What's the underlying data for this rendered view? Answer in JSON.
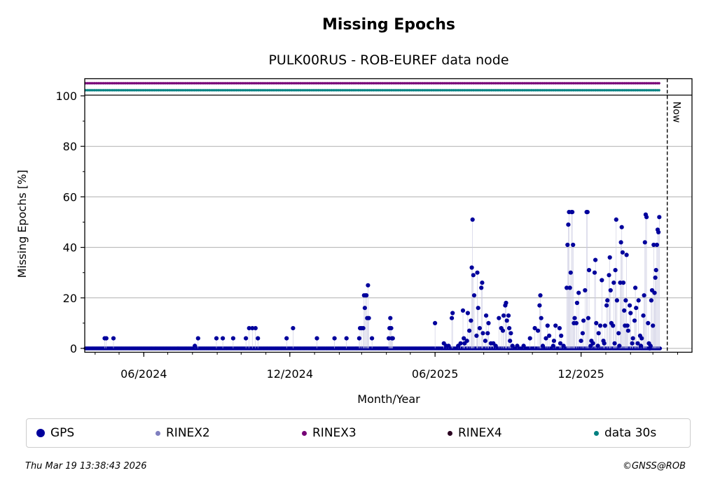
{
  "chart_data": {
    "type": "scatter",
    "title": "Missing Epochs",
    "subtitle": "PULK00RUS - ROB-EUREF data node",
    "xlabel": "Month/Year",
    "ylabel": "Missing Epochs [%]",
    "xlim": [
      "2024-03-19",
      "2026-04-19"
    ],
    "ylim": [
      -1,
      100
    ],
    "yticks": [
      0,
      20,
      40,
      60,
      80,
      100
    ],
    "xticks": [
      {
        "date": "2024-06-01",
        "label": "06/2024"
      },
      {
        "date": "2024-12-01",
        "label": "12/2024"
      },
      {
        "date": "2025-06-01",
        "label": "06/2025"
      },
      {
        "date": "2025-12-01",
        "label": "12/2025"
      }
    ],
    "grid": true,
    "now_date": "2026-03-19",
    "now_label": "Now",
    "series_color": "#00008b",
    "series": [
      {
        "name": "GPS",
        "color": "#00009c",
        "points": [
          [
            "2024-04-13",
            4
          ],
          [
            "2024-04-15",
            4
          ],
          [
            "2024-04-24",
            4
          ],
          [
            "2024-08-04",
            1
          ],
          [
            "2024-08-08",
            4
          ],
          [
            "2024-08-31",
            4
          ],
          [
            "2024-09-08",
            4
          ],
          [
            "2024-09-21",
            4
          ],
          [
            "2024-10-07",
            4
          ],
          [
            "2024-10-11",
            8
          ],
          [
            "2024-10-15",
            8
          ],
          [
            "2024-10-19",
            8
          ],
          [
            "2024-10-22",
            4
          ],
          [
            "2024-11-27",
            4
          ],
          [
            "2024-12-05",
            8
          ],
          [
            "2025-01-04",
            4
          ],
          [
            "2025-01-26",
            4
          ],
          [
            "2025-02-10",
            4
          ],
          [
            "2025-02-26",
            4
          ],
          [
            "2025-02-27",
            8
          ],
          [
            "2025-03-01",
            8
          ],
          [
            "2025-03-03",
            8
          ],
          [
            "2025-03-04",
            21
          ],
          [
            "2025-03-05",
            16
          ],
          [
            "2025-03-06",
            21
          ],
          [
            "2025-03-07",
            21
          ],
          [
            "2025-03-08",
            12
          ],
          [
            "2025-03-09",
            25
          ],
          [
            "2025-03-10",
            12
          ],
          [
            "2025-03-14",
            4
          ],
          [
            "2025-04-04",
            4
          ],
          [
            "2025-04-05",
            8
          ],
          [
            "2025-04-06",
            12
          ],
          [
            "2025-04-07",
            8
          ],
          [
            "2025-04-08",
            4
          ],
          [
            "2025-04-09",
            4
          ],
          [
            "2025-06-01",
            10
          ],
          [
            "2025-06-12",
            2
          ],
          [
            "2025-06-15",
            1
          ],
          [
            "2025-06-18",
            1
          ],
          [
            "2025-06-22",
            12
          ],
          [
            "2025-06-23",
            14
          ],
          [
            "2025-06-30",
            1
          ],
          [
            "2025-07-03",
            2
          ],
          [
            "2025-07-06",
            15
          ],
          [
            "2025-07-07",
            4
          ],
          [
            "2025-07-08",
            2
          ],
          [
            "2025-07-11",
            3
          ],
          [
            "2025-07-12",
            14
          ],
          [
            "2025-07-14",
            7
          ],
          [
            "2025-07-16",
            11
          ],
          [
            "2025-07-17",
            32
          ],
          [
            "2025-07-18",
            51
          ],
          [
            "2025-07-19",
            29
          ],
          [
            "2025-07-20",
            21
          ],
          [
            "2025-07-23",
            5
          ],
          [
            "2025-07-24",
            30
          ],
          [
            "2025-07-25",
            16
          ],
          [
            "2025-07-27",
            8
          ],
          [
            "2025-07-29",
            24
          ],
          [
            "2025-07-30",
            26
          ],
          [
            "2025-07-31",
            6
          ],
          [
            "2025-08-03",
            3
          ],
          [
            "2025-08-04",
            13
          ],
          [
            "2025-08-06",
            6
          ],
          [
            "2025-08-07",
            10
          ],
          [
            "2025-08-10",
            2
          ],
          [
            "2025-08-13",
            2
          ],
          [
            "2025-08-16",
            1
          ],
          [
            "2025-08-20",
            12
          ],
          [
            "2025-08-23",
            8
          ],
          [
            "2025-08-25",
            7
          ],
          [
            "2025-08-26",
            13
          ],
          [
            "2025-08-28",
            17
          ],
          [
            "2025-08-29",
            18
          ],
          [
            "2025-08-30",
            11
          ],
          [
            "2025-09-01",
            13
          ],
          [
            "2025-09-02",
            8
          ],
          [
            "2025-09-03",
            3
          ],
          [
            "2025-09-04",
            6
          ],
          [
            "2025-09-06",
            1
          ],
          [
            "2025-09-12",
            1
          ],
          [
            "2025-09-20",
            1
          ],
          [
            "2025-09-28",
            4
          ],
          [
            "2025-10-04",
            8
          ],
          [
            "2025-10-08",
            7
          ],
          [
            "2025-10-10",
            17
          ],
          [
            "2025-10-11",
            21
          ],
          [
            "2025-10-12",
            12
          ],
          [
            "2025-10-14",
            1
          ],
          [
            "2025-10-18",
            4
          ],
          [
            "2025-10-20",
            9
          ],
          [
            "2025-10-22",
            5
          ],
          [
            "2025-10-27",
            1
          ],
          [
            "2025-10-28",
            3
          ],
          [
            "2025-10-30",
            9
          ],
          [
            "2025-11-04",
            8
          ],
          [
            "2025-11-05",
            2
          ],
          [
            "2025-11-06",
            5
          ],
          [
            "2025-11-09",
            1
          ],
          [
            "2025-11-13",
            24
          ],
          [
            "2025-11-14",
            41
          ],
          [
            "2025-11-15",
            49
          ],
          [
            "2025-11-16",
            54
          ],
          [
            "2025-11-17",
            24
          ],
          [
            "2025-11-18",
            30
          ],
          [
            "2025-11-19",
            54
          ],
          [
            "2025-11-20",
            54
          ],
          [
            "2025-11-21",
            41
          ],
          [
            "2025-11-22",
            10
          ],
          [
            "2025-11-23",
            12
          ],
          [
            "2025-11-25",
            10
          ],
          [
            "2025-11-26",
            18
          ],
          [
            "2025-11-28",
            22
          ],
          [
            "2025-12-01",
            3
          ],
          [
            "2025-12-03",
            6
          ],
          [
            "2025-12-04",
            11
          ],
          [
            "2025-12-06",
            23
          ],
          [
            "2025-12-08",
            54
          ],
          [
            "2025-12-09",
            54
          ],
          [
            "2025-12-10",
            12
          ],
          [
            "2025-12-11",
            31
          ],
          [
            "2025-12-13",
            1
          ],
          [
            "2025-12-14",
            3
          ],
          [
            "2025-12-16",
            2
          ],
          [
            "2025-12-18",
            30
          ],
          [
            "2025-12-19",
            35
          ],
          [
            "2025-12-20",
            10
          ],
          [
            "2025-12-22",
            1
          ],
          [
            "2025-12-23",
            6
          ],
          [
            "2025-12-25",
            9
          ],
          [
            "2025-12-27",
            27
          ],
          [
            "2025-12-29",
            3
          ],
          [
            "2025-12-30",
            2
          ],
          [
            "2025-12-31",
            9
          ],
          [
            "2026-01-02",
            17
          ],
          [
            "2026-01-03",
            19
          ],
          [
            "2026-01-05",
            29
          ],
          [
            "2026-01-06",
            36
          ],
          [
            "2026-01-07",
            23
          ],
          [
            "2026-01-08",
            10
          ],
          [
            "2026-01-10",
            9
          ],
          [
            "2026-01-11",
            26
          ],
          [
            "2026-01-12",
            2
          ],
          [
            "2026-01-13",
            31
          ],
          [
            "2026-01-14",
            51
          ],
          [
            "2026-01-15",
            19
          ],
          [
            "2026-01-17",
            6
          ],
          [
            "2026-01-18",
            1
          ],
          [
            "2026-01-19",
            26
          ],
          [
            "2026-01-20",
            42
          ],
          [
            "2026-01-21",
            48
          ],
          [
            "2026-01-22",
            38
          ],
          [
            "2026-01-23",
            26
          ],
          [
            "2026-01-24",
            15
          ],
          [
            "2026-01-25",
            9
          ],
          [
            "2026-01-26",
            19
          ],
          [
            "2026-01-27",
            37
          ],
          [
            "2026-01-28",
            9
          ],
          [
            "2026-01-29",
            7
          ],
          [
            "2026-01-31",
            17
          ],
          [
            "2026-02-01",
            14
          ],
          [
            "2026-02-03",
            2
          ],
          [
            "2026-02-04",
            4
          ],
          [
            "2026-02-06",
            11
          ],
          [
            "2026-02-07",
            24
          ],
          [
            "2026-02-08",
            16
          ],
          [
            "2026-02-10",
            2
          ],
          [
            "2026-02-11",
            19
          ],
          [
            "2026-02-13",
            5
          ],
          [
            "2026-02-14",
            1
          ],
          [
            "2026-02-15",
            4
          ],
          [
            "2026-02-17",
            13
          ],
          [
            "2026-02-18",
            21
          ],
          [
            "2026-02-19",
            42
          ],
          [
            "2026-02-20",
            53
          ],
          [
            "2026-02-21",
            52
          ],
          [
            "2026-02-23",
            10
          ],
          [
            "2026-02-24",
            2
          ],
          [
            "2026-02-25",
            0
          ],
          [
            "2026-02-26",
            1
          ],
          [
            "2026-02-27",
            19
          ],
          [
            "2026-02-28",
            23
          ],
          [
            "2026-03-01",
            9
          ],
          [
            "2026-03-02",
            41
          ],
          [
            "2026-03-03",
            22
          ],
          [
            "2026-03-04",
            28
          ],
          [
            "2026-03-05",
            31
          ],
          [
            "2026-03-06",
            41
          ],
          [
            "2026-03-07",
            47
          ],
          [
            "2026-03-08",
            46
          ],
          [
            "2026-03-09",
            52
          ]
        ]
      }
    ],
    "zero_run": {
      "start": "2024-03-20",
      "end": "2026-03-10",
      "value": 0
    },
    "availability_bands": [
      {
        "name": "RINEX3",
        "color": "#750075",
        "start": "2024-03-20",
        "end": "2026-03-11"
      },
      {
        "name": "data 30s",
        "color": "#008080",
        "start": "2024-03-20",
        "end": "2026-03-11"
      }
    ]
  },
  "legend": [
    {
      "label": "GPS",
      "color": "#00009c",
      "size": 12
    },
    {
      "label": "RINEX2",
      "color": "#7f7fbf",
      "size": 7
    },
    {
      "label": "RINEX3",
      "color": "#750075",
      "size": 7
    },
    {
      "label": "RINEX4",
      "color": "#2a0020",
      "size": 7
    },
    {
      "label": "data 30s",
      "color": "#008080",
      "size": 7
    }
  ],
  "footer": {
    "timestamp": "Thu Mar 19 13:38:43 2026",
    "copyright": "©GNSS@ROB"
  }
}
